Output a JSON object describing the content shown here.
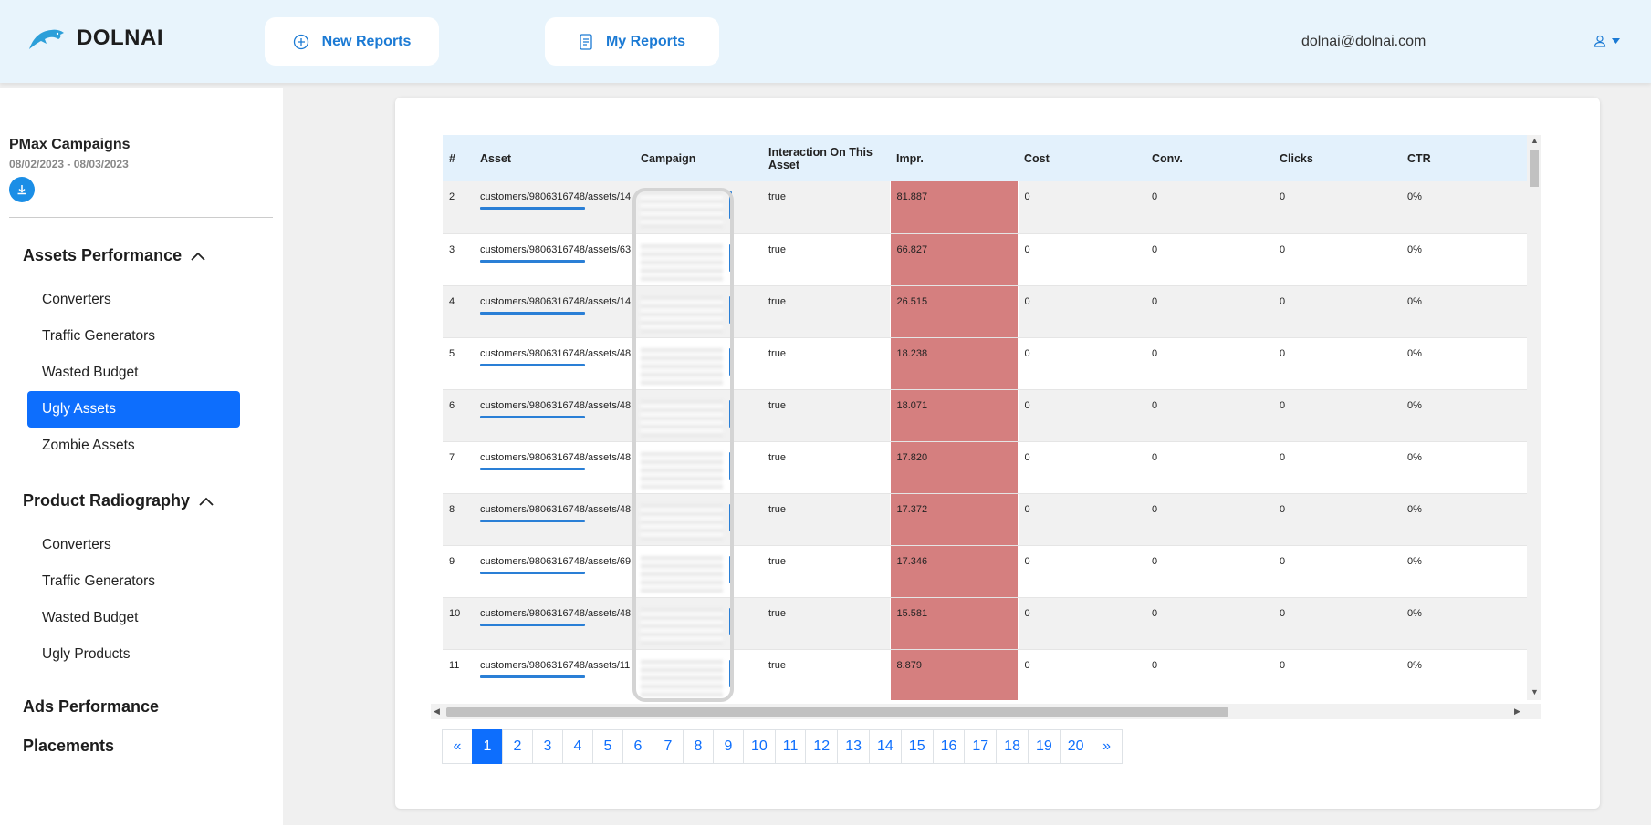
{
  "app": {
    "brand": "DOLNAI"
  },
  "header": {
    "new_reports": "New Reports",
    "my_reports": "My Reports",
    "user_email": "dolnai@dolnai.com"
  },
  "sidebar": {
    "title": "PMax Campaigns",
    "date_range": "08/02/2023 - 08/03/2023",
    "sections": [
      {
        "label": "Assets Performance",
        "items": [
          "Converters",
          "Traffic Generators",
          "Wasted Budget",
          "Ugly Assets",
          "Zombie Assets"
        ]
      },
      {
        "label": "Product Radiography",
        "items": [
          "Converters",
          "Traffic Generators",
          "Wasted Budget",
          "Ugly Products"
        ]
      },
      {
        "label": "Ads Performance"
      },
      {
        "label": "Placements"
      }
    ],
    "active_item": "Ugly Assets"
  },
  "table": {
    "columns": [
      "#",
      "Asset",
      "Campaign",
      "Interaction On This Asset",
      "Impr.",
      "Cost",
      "Conv.",
      "Clicks",
      "CTR"
    ],
    "rows": [
      {
        "n": "2",
        "asset": "customers/9806316748/assets/14",
        "interaction": "true",
        "impr": "81.887",
        "cost": "0",
        "conv": "0",
        "clicks": "0",
        "ctr": "0%"
      },
      {
        "n": "3",
        "asset": "customers/9806316748/assets/63",
        "interaction": "true",
        "impr": "66.827",
        "cost": "0",
        "conv": "0",
        "clicks": "0",
        "ctr": "0%"
      },
      {
        "n": "4",
        "asset": "customers/9806316748/assets/14",
        "interaction": "true",
        "impr": "26.515",
        "cost": "0",
        "conv": "0",
        "clicks": "0",
        "ctr": "0%"
      },
      {
        "n": "5",
        "asset": "customers/9806316748/assets/48",
        "interaction": "true",
        "impr": "18.238",
        "cost": "0",
        "conv": "0",
        "clicks": "0",
        "ctr": "0%"
      },
      {
        "n": "6",
        "asset": "customers/9806316748/assets/48",
        "interaction": "true",
        "impr": "18.071",
        "cost": "0",
        "conv": "0",
        "clicks": "0",
        "ctr": "0%"
      },
      {
        "n": "7",
        "asset": "customers/9806316748/assets/48",
        "interaction": "true",
        "impr": "17.820",
        "cost": "0",
        "conv": "0",
        "clicks": "0",
        "ctr": "0%"
      },
      {
        "n": "8",
        "asset": "customers/9806316748/assets/48",
        "interaction": "true",
        "impr": "17.372",
        "cost": "0",
        "conv": "0",
        "clicks": "0",
        "ctr": "0%"
      },
      {
        "n": "9",
        "asset": "customers/9806316748/assets/69",
        "interaction": "true",
        "impr": "17.346",
        "cost": "0",
        "conv": "0",
        "clicks": "0",
        "ctr": "0%"
      },
      {
        "n": "10",
        "asset": "customers/9806316748/assets/48",
        "interaction": "true",
        "impr": "15.581",
        "cost": "0",
        "conv": "0",
        "clicks": "0",
        "ctr": "0%"
      },
      {
        "n": "11",
        "asset": "customers/9806316748/assets/11",
        "interaction": "true",
        "impr": "8.879",
        "cost": "0",
        "conv": "0",
        "clicks": "0",
        "ctr": "0%"
      }
    ]
  },
  "pagination": {
    "prev": "«",
    "pages": [
      "1",
      "2",
      "3",
      "4",
      "5",
      "6",
      "7",
      "8",
      "9",
      "10",
      "11",
      "12",
      "13",
      "14",
      "15",
      "16",
      "17",
      "18",
      "19",
      "20"
    ],
    "next": "»",
    "current": "1"
  },
  "colors": {
    "accent": "#0d6efd",
    "header_bg": "#e8f4fc",
    "impr_highlight": "#d57f7f"
  }
}
